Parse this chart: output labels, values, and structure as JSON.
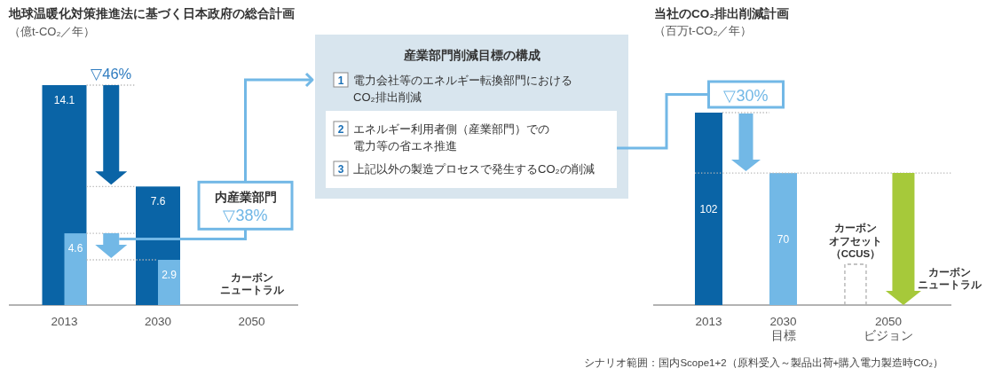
{
  "chart_data": [
    {
      "type": "bar",
      "title": "地球温暖化対策推進法に基づく日本政府の総合計画",
      "subtitle": "（億t-CO₂／年）",
      "categories": [
        "2013",
        "2030",
        "2050"
      ],
      "series": [
        {
          "color": "#0a64a6",
          "values": [
            14.1,
            7.6,
            null
          ]
        },
        {
          "color": "#72b8e6",
          "values": [
            4.6,
            2.9,
            null
          ]
        }
      ],
      "data_labels": true,
      "tick_labels": "x",
      "annotations": [
        "▽46%",
        "内産業部門",
        "▽38%",
        "カーボンニュートラル"
      ]
    },
    {
      "type": "other",
      "title": "産業部門削減目標の構成",
      "annotations": [
        "1",
        "電力会社等のエネルギー転換部門におけるCO₂排出削減",
        "2",
        "エネルギー利用者側（産業部門）での電力等の省エネ推進",
        "3",
        "上記以外の製造プロセスで発生するCO₂の削減"
      ]
    },
    {
      "type": "bar",
      "title": "当社のCO₂排出削減計画",
      "subtitle": "（百万t-CO₂／年）",
      "categories": [
        "2013",
        "2030\n目標",
        "2050\nビジョン"
      ],
      "values": [
        102,
        70,
        null
      ],
      "colors": [
        "#0a64a6",
        "#72b8e6",
        "#a6c93a"
      ],
      "ref_lines": [
        {
          "axis": "y",
          "value": 70,
          "line_style": "dotted",
          "color": "#b8b8b8"
        }
      ],
      "data_labels": true,
      "tick_labels": "x",
      "annotations": [
        "▽30%",
        "カーボンオフセット（CCUS）",
        "カーボンニュートラル",
        "シナリオ範囲：国内Scope1+2（原料受入～製品出荷+購入電力製造時CO₂）"
      ]
    }
  ]
}
